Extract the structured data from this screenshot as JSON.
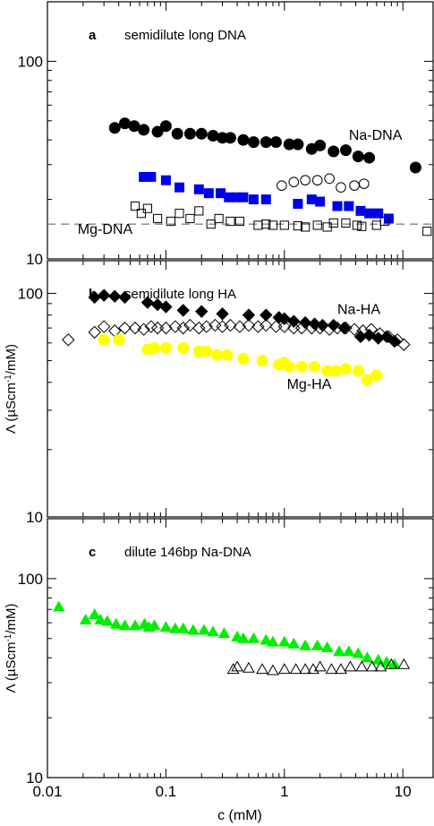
{
  "figure": {
    "x_axis_label": "c (mM)",
    "x_ticks": [
      "0.01",
      "0.1",
      "1",
      "10"
    ],
    "y_axis_label_prefix": "Λ (µScm",
    "y_axis_label_sup": "-1",
    "y_axis_label_suffix": "/mM)"
  },
  "chart_data": [
    {
      "type": "scatter",
      "panel_letter": "a",
      "title": "semidilute long DNA",
      "xscale": "log",
      "yscale": "log",
      "xlim": [
        0.01,
        18
      ],
      "ylim": [
        10,
        200
      ],
      "y_ticks": [
        "10",
        "100"
      ],
      "y_axis_label_shown": false,
      "reference_line": {
        "y": 15,
        "style": "dashed"
      },
      "annotations": [
        {
          "text": "Na-DNA",
          "x": 3.5,
          "y": 40
        },
        {
          "text": "Mg-DNA",
          "x": 0.018,
          "y": 13.4
        }
      ],
      "series": [
        {
          "marker": "circle",
          "filled": true,
          "color": "#000000",
          "x": [
            0.037,
            0.045,
            0.054,
            0.065,
            0.085,
            0.1,
            0.125,
            0.16,
            0.2,
            0.25,
            0.3,
            0.35,
            0.45,
            0.55,
            0.7,
            0.85,
            1.1,
            1.3,
            1.7,
            2.0,
            2.6,
            3.3,
            4.2,
            5.2,
            12.8
          ],
          "y": [
            46,
            48.5,
            47,
            45,
            44,
            47,
            43,
            43,
            43,
            42,
            41,
            41,
            40,
            39,
            39,
            39,
            38,
            38,
            36,
            37.5,
            35,
            35.5,
            33,
            32.5,
            29
          ]
        },
        {
          "marker": "circle",
          "filled": false,
          "color": "#000000",
          "x": [
            0.95,
            1.2,
            1.5,
            1.9,
            2.4,
            3.0,
            3.9,
            4.7
          ],
          "y": [
            23.5,
            24.5,
            25,
            25,
            25.5,
            23,
            23.5,
            24
          ]
        },
        {
          "marker": "square",
          "filled": true,
          "color": "#0000ee",
          "x": [
            0.065,
            0.075,
            0.1,
            0.13,
            0.19,
            0.23,
            0.29,
            0.34,
            0.4,
            0.45,
            0.55,
            0.7,
            1.3,
            1.7,
            2.0,
            2.8,
            3.5,
            4.4,
            5.2,
            6.2,
            7.6
          ],
          "y": [
            26,
            26,
            25,
            23,
            22.5,
            21.5,
            21.5,
            20.5,
            20.5,
            20.5,
            20,
            20,
            19,
            20,
            19.5,
            18.5,
            18.5,
            17.5,
            17,
            17,
            16
          ]
        },
        {
          "marker": "square",
          "filled": false,
          "color": "#000000",
          "x": [
            0.055,
            0.062,
            0.07,
            0.085,
            0.11,
            0.13,
            0.16,
            0.19,
            0.24,
            0.28,
            0.35,
            0.42,
            0.6,
            0.7,
            0.8,
            1.0,
            1.3,
            1.5,
            1.9,
            2.3,
            2.6,
            3.3,
            4.1,
            4.5,
            6.0,
            7.0,
            16
          ],
          "y": [
            18.5,
            17,
            18,
            16,
            15.5,
            17,
            16,
            17.5,
            15,
            16,
            15.5,
            15.5,
            14.8,
            15,
            14.8,
            14.8,
            14.7,
            14.5,
            14.8,
            14.5,
            15.2,
            15.2,
            14.8,
            14.6,
            14.8,
            15.5,
            13.8
          ]
        }
      ]
    },
    {
      "type": "scatter",
      "panel_letter": "b",
      "title": "semidilute long HA",
      "xscale": "log",
      "yscale": "log",
      "xlim": [
        0.01,
        18
      ],
      "ylim": [
        10,
        140
      ],
      "y_ticks": [
        "10",
        "100"
      ],
      "y_axis_label_shown": true,
      "annotations": [
        {
          "text": "Na-HA",
          "x": 2.8,
          "y": 81
        },
        {
          "text": "Mg-HA",
          "x": 1.05,
          "y": 37.5
        }
      ],
      "series": [
        {
          "marker": "diamond",
          "filled": true,
          "color": "#000000",
          "x": [
            0.025,
            0.03,
            0.037,
            0.045,
            0.07,
            0.085,
            0.1,
            0.14,
            0.2,
            0.3,
            0.5,
            0.7,
            0.9,
            1.0,
            1.2,
            1.5,
            1.8,
            2.1,
            2.6,
            3.2,
            4.4,
            5.2,
            6.2,
            7.3,
            8.5
          ],
          "y": [
            96,
            98,
            97,
            96,
            91,
            89,
            87,
            84,
            83,
            81,
            80,
            80,
            78,
            77,
            75,
            74,
            73,
            72,
            72,
            70,
            64,
            65,
            63,
            64,
            61
          ]
        },
        {
          "marker": "diamond",
          "filled": false,
          "color": "#000000",
          "x": [
            0.015,
            0.025,
            0.03,
            0.037,
            0.045,
            0.055,
            0.065,
            0.075,
            0.085,
            0.1,
            0.12,
            0.14,
            0.16,
            0.19,
            0.22,
            0.26,
            0.3,
            0.35,
            0.42,
            0.5,
            0.6,
            0.7,
            0.85,
            1.0,
            1.2,
            1.4,
            1.7,
            2.0,
            2.4,
            2.8,
            3.3,
            3.9,
            4.6,
            5.4,
            6.4,
            7.6,
            9.0,
            10.2
          ],
          "y": [
            62,
            67,
            71,
            68,
            70,
            70,
            69,
            71,
            70,
            70,
            71,
            70,
            72,
            70,
            71,
            72,
            71,
            72,
            71,
            72,
            71,
            72,
            71,
            71,
            70,
            70,
            70,
            70,
            69,
            70,
            70,
            69,
            68,
            69,
            66,
            64,
            62,
            59
          ]
        },
        {
          "marker": "circle",
          "filled": true,
          "color": "#ffff00",
          "x": [
            0.03,
            0.04,
            0.07,
            0.08,
            0.1,
            0.14,
            0.19,
            0.22,
            0.27,
            0.33,
            0.45,
            0.65,
            0.9,
            1.0,
            1.1,
            1.4,
            1.8,
            2.3,
            2.7,
            3.3,
            4.2,
            5.0,
            6.0
          ],
          "y": [
            62,
            62,
            56,
            57,
            57,
            57,
            55,
            55,
            53,
            53,
            51,
            50,
            48,
            49,
            47,
            47,
            47,
            45,
            45,
            46,
            45,
            41,
            43
          ]
        }
      ]
    },
    {
      "type": "scatter",
      "panel_letter": "c",
      "title": "dilute 146bp Na-DNA",
      "xscale": "log",
      "yscale": "log",
      "xlim": [
        0.01,
        18
      ],
      "ylim": [
        10,
        200
      ],
      "x_ticks_shown": true,
      "y_ticks": [
        "10",
        "100"
      ],
      "y_axis_label_shown": true,
      "series": [
        {
          "marker": "triangle",
          "filled": true,
          "color": "#00ee00",
          "x": [
            0.0125,
            0.021,
            0.025,
            0.028,
            0.032,
            0.038,
            0.045,
            0.055,
            0.066,
            0.072,
            0.08,
            0.1,
            0.12,
            0.14,
            0.17,
            0.21,
            0.25,
            0.31,
            0.4,
            0.45,
            0.55,
            0.7,
            0.8,
            1.0,
            1.2,
            1.5,
            1.9,
            2.3,
            2.9,
            3.5,
            4.2,
            5.0,
            6.2,
            7.3,
            8.5
          ],
          "y": [
            72,
            62,
            66,
            62,
            61,
            59,
            58,
            58,
            59,
            57,
            58,
            57,
            56,
            56,
            55,
            55,
            54,
            53,
            51,
            50,
            50,
            49,
            48,
            48,
            47,
            46,
            46,
            45,
            43,
            43,
            42,
            40,
            39,
            38,
            37
          ]
        },
        {
          "marker": "triangle",
          "filled": false,
          "color": "#000000",
          "x": [
            0.37,
            0.4,
            0.5,
            0.65,
            0.8,
            1.0,
            1.25,
            1.5,
            1.75,
            2.0,
            2.5,
            3.0,
            3.6,
            4.5,
            5.5,
            6.5,
            8.0,
            10.2
          ],
          "y": [
            35,
            36,
            35.5,
            35,
            34.5,
            35,
            35,
            35,
            35,
            36,
            35,
            35,
            36,
            36,
            36,
            36,
            37,
            37
          ]
        }
      ]
    }
  ]
}
